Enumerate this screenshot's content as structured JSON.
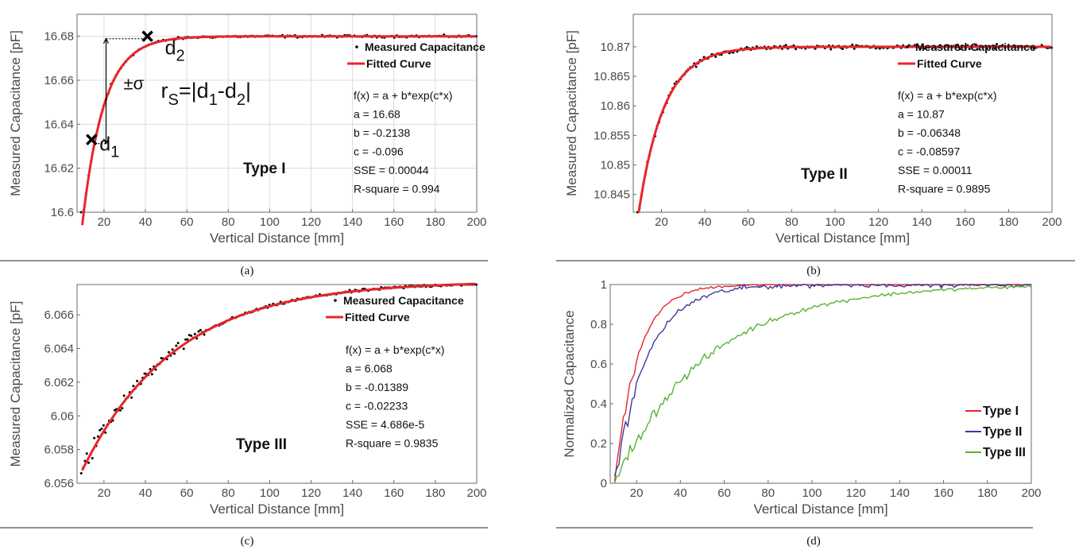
{
  "figure": {
    "captions": [
      "(a)",
      "(b)",
      "(c)",
      "(d)"
    ]
  },
  "chart_data": [
    {
      "panel": "a",
      "type": "scatter",
      "xlabel": "Vertical Distance [mm]",
      "ylabel": "Measured Capacitance [pF]",
      "xlim": [
        7,
        200
      ],
      "ylim": [
        16.6,
        16.69
      ],
      "xticks": [
        20,
        40,
        60,
        80,
        100,
        120,
        140,
        160,
        180,
        200
      ],
      "yticks": [
        16.6,
        16.62,
        16.64,
        16.66,
        16.68
      ],
      "ytick_labels": [
        "16.6",
        "16.62",
        "16.64",
        "16.66",
        "16.68"
      ],
      "grid": true,
      "legend": [
        "Measured Capacitance",
        "Fitted Curve"
      ],
      "legend_position": "top-right",
      "fit": {
        "a": 16.68,
        "b": -0.2138,
        "c": -0.096
      },
      "fit_lines": [
        "f(x) = a + b*exp(c*x)",
        "a = 16.68",
        "b = -0.2138",
        "c = -0.096",
        "SSE = 0.00044",
        "R-square = 0.994"
      ],
      "type_label": "Type I",
      "annotations": {
        "d1": {
          "x": 14,
          "y": 16.633,
          "text": "d",
          "sub": "1"
        },
        "d2": {
          "x": 41,
          "y": 16.68,
          "text": "d",
          "sub": "2"
        },
        "sigma": "±σ",
        "formula": {
          "lhs": "r",
          "lhs_sub": "S",
          "parts": [
            "=|d",
            "1",
            "-d",
            "2",
            "|"
          ]
        }
      },
      "colors": {
        "points": "#000000",
        "fit": "#e8262b",
        "line": "#3a3aa0"
      }
    },
    {
      "panel": "b",
      "type": "scatter",
      "xlabel": "Vertical Distance [mm]",
      "ylabel": "Measured Capacitance [pF]",
      "xlim": [
        7,
        200
      ],
      "ylim": [
        10.842,
        10.8755
      ],
      "xticks": [
        20,
        40,
        60,
        80,
        100,
        120,
        140,
        160,
        180,
        200
      ],
      "yticks": [
        10.845,
        10.85,
        10.855,
        10.86,
        10.865,
        10.87
      ],
      "ytick_labels": [
        "10.845",
        "10.85",
        "10.855",
        "10.86",
        "10.865",
        "10.87"
      ],
      "grid": false,
      "legend": [
        "Measured Capacitance",
        "Fitted Curve"
      ],
      "legend_position": "top-right",
      "fit": {
        "a": 10.87,
        "b": -0.06348,
        "c": -0.08597
      },
      "fit_lines": [
        "f(x) = a + b*exp(c*x)",
        "a = 10.87",
        "b = -0.06348",
        "c = -0.08597",
        "SSE = 0.00011",
        "R-square = 0.9895"
      ],
      "type_label": "Type II",
      "colors": {
        "points": "#000000",
        "fit": "#e8262b"
      }
    },
    {
      "panel": "c",
      "type": "scatter",
      "xlabel": "Vertical Distance [mm]",
      "ylabel": "Measured Capacitance [pF]",
      "xlim": [
        7,
        200
      ],
      "ylim": [
        6.056,
        6.0678
      ],
      "xticks": [
        20,
        40,
        60,
        80,
        100,
        120,
        140,
        160,
        180,
        200
      ],
      "yticks": [
        6.056,
        6.058,
        6.06,
        6.062,
        6.064,
        6.066
      ],
      "ytick_labels": [
        "6.056",
        "6.058",
        "6.06",
        "6.062",
        "6.064",
        "6.066"
      ],
      "grid": false,
      "legend": [
        "Measured Capacitance",
        "Fitted Curve"
      ],
      "legend_position": "top-right",
      "fit": {
        "a": 6.068,
        "b": -0.01389,
        "c": -0.02233
      },
      "fit_lines": [
        "f(x) = a + b*exp(c*x)",
        "a = 6.068",
        "b = -0.01389",
        "c = -0.02233",
        "SSE = 4.686e-5",
        "R-square = 0.9835"
      ],
      "type_label": "Type III",
      "colors": {
        "points": "#000000",
        "fit": "#e8262b"
      }
    },
    {
      "panel": "d",
      "type": "line",
      "xlabel": "Vertical Distance [mm]",
      "ylabel": "Normalized Capacitance",
      "xlim": [
        8,
        200
      ],
      "ylim": [
        0,
        1
      ],
      "xticks": [
        20,
        40,
        60,
        80,
        100,
        120,
        140,
        160,
        180,
        200
      ],
      "yticks": [
        0,
        0.2,
        0.4,
        0.6,
        0.8,
        1
      ],
      "ytick_labels": [
        "0",
        "0.2",
        "0.4",
        "0.6",
        "0.8",
        "1"
      ],
      "grid": false,
      "legend_position": "bottom-right",
      "series": [
        {
          "name": "Type I",
          "color": "#e8262b",
          "k": 0.096,
          "x0": 10
        },
        {
          "name": "Type II",
          "color": "#3a3aa0",
          "k": 0.068,
          "x0": 10
        },
        {
          "name": "Type III",
          "color": "#59b330",
          "k": 0.024,
          "x0": 10
        }
      ]
    }
  ]
}
